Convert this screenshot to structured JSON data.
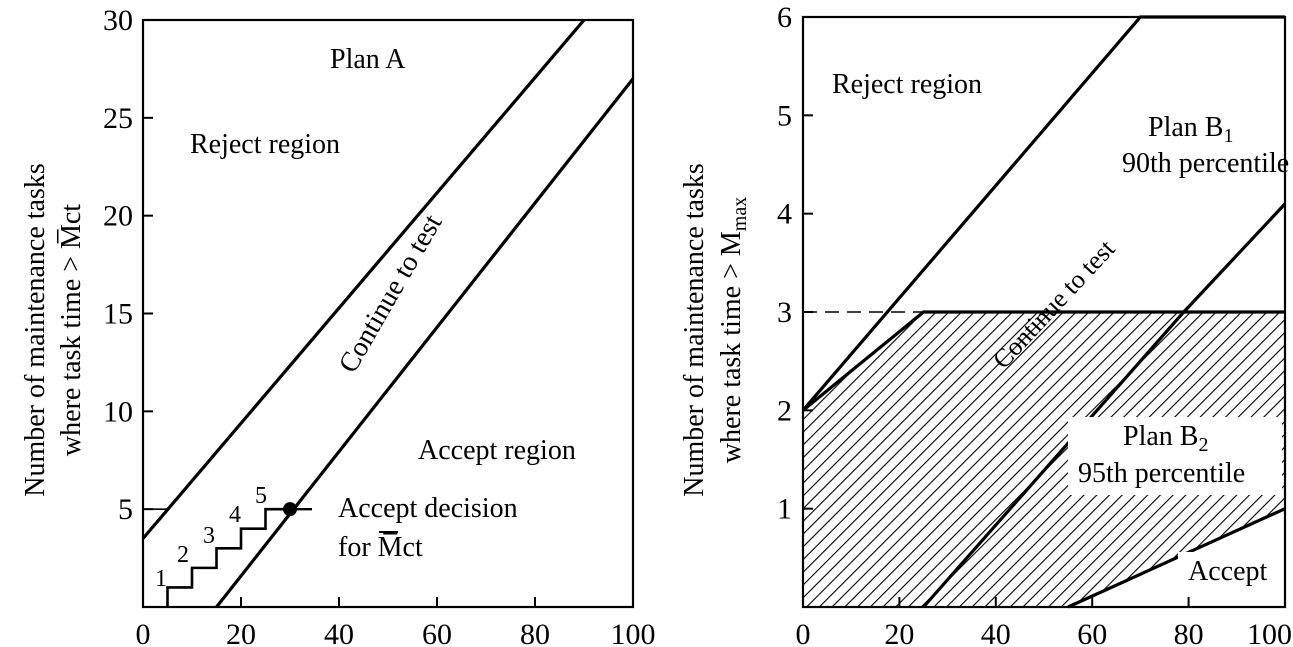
{
  "chart_data": [
    {
      "type": "line",
      "panel": "Plan A",
      "ylabel_line1": "Number of maintenance tasks",
      "ylabel_line2": "where task time > M̅ct",
      "xlim": [
        0,
        100
      ],
      "ylim": [
        0,
        30
      ],
      "x_ticks": [
        0,
        20,
        40,
        60,
        80,
        100
      ],
      "y_ticks": [
        5,
        10,
        15,
        20,
        25,
        30
      ],
      "series": [
        {
          "points": [
            [
              0,
              3.5
            ],
            [
              90,
              30
            ]
          ]
        },
        {
          "points": [
            [
              15,
              0
            ],
            [
              100,
              27
            ]
          ]
        }
      ],
      "staircase": [
        [
          5,
          0
        ],
        [
          5,
          1
        ],
        [
          10,
          1
        ],
        [
          10,
          2
        ],
        [
          15,
          2
        ],
        [
          15,
          3
        ],
        [
          20,
          3
        ],
        [
          20,
          4
        ],
        [
          25,
          4
        ],
        [
          25,
          5
        ],
        [
          30,
          5
        ]
      ],
      "decision_point": [
        30,
        5
      ],
      "step_labels": [
        "1",
        "2",
        "3",
        "4",
        "5"
      ],
      "annotations": {
        "plan": "Plan A",
        "reject": "Reject region",
        "continue": "Continue to test",
        "accept_region": "Accept region",
        "accept_decision_1": "Accept decision",
        "accept_decision_2": "for M̅ct"
      }
    },
    {
      "type": "line",
      "panel": "Plan B",
      "ylabel_line1": "Number of maintenance tasks",
      "ylabel_line2": "where task time > M",
      "ylabel_sub": "max",
      "xlim": [
        0,
        100
      ],
      "ylim": [
        0,
        6
      ],
      "x_ticks": [
        0,
        20,
        40,
        60,
        80,
        100
      ],
      "y_ticks": [
        1,
        2,
        3,
        4,
        5,
        6
      ],
      "series": [
        {
          "points": [
            [
              0,
              2
            ],
            [
              25,
              3
            ],
            [
              100,
              3
            ]
          ]
        },
        {
          "points": [
            [
              0,
              2
            ],
            [
              70,
              6
            ],
            [
              100,
              6
            ]
          ]
        },
        {
          "points": [
            [
              25,
              0
            ],
            [
              79,
              3
            ],
            [
              100,
              4.1
            ]
          ]
        },
        {
          "points": [
            [
              55,
              0
            ],
            [
              100,
              1
            ]
          ]
        }
      ],
      "hatched_region": [
        [
          0,
          2
        ],
        [
          25,
          3
        ],
        [
          100,
          3
        ],
        [
          100,
          1
        ],
        [
          55,
          0
        ],
        [
          0,
          0
        ]
      ],
      "annotations": {
        "reject": "Reject region",
        "plan_b1": "Plan B",
        "plan_b1_sub": "1",
        "p90": "90th percentile",
        "continue": "Continue to test",
        "plan_b2": "Plan B",
        "plan_b2_sub": "2",
        "p95": "95th percentile",
        "accept": "Accept"
      }
    }
  ]
}
